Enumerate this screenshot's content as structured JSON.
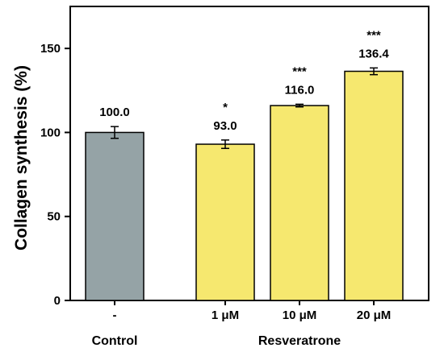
{
  "chart_data": {
    "type": "bar",
    "title": "",
    "xlabel": "",
    "ylabel": "Collagen synthesis (%)",
    "ylim": [
      0,
      175
    ],
    "yticks": [
      0,
      50,
      100,
      150
    ],
    "grid": false,
    "categories": [
      "-",
      "1 μM",
      "10 μM",
      "20 μM"
    ],
    "values": [
      100.0,
      93.0,
      116.0,
      136.4
    ],
    "value_labels": [
      "100.0",
      "93.0",
      "116.0",
      "136.4"
    ],
    "errors": [
      3.5,
      2.5,
      0.8,
      2.0
    ],
    "significance": [
      "",
      "*",
      "***",
      "***"
    ],
    "bar_colors": [
      "#95a3a6",
      "#f6e86f",
      "#f6e86f",
      "#f6e86f"
    ],
    "groups": [
      {
        "label": "Control",
        "categories": [
          "-"
        ]
      },
      {
        "label": "Resveratrone",
        "categories": [
          "1 μM",
          "10 μM",
          "20 μM"
        ]
      }
    ]
  }
}
